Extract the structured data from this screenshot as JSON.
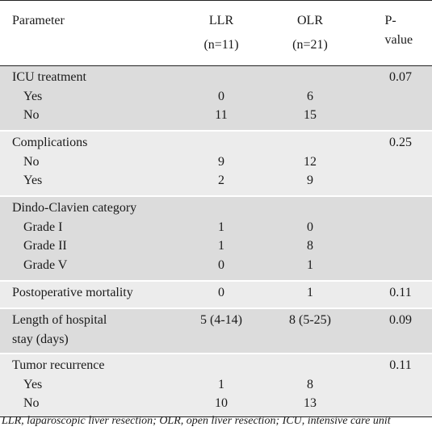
{
  "header": {
    "parameter": "Parameter",
    "llr": "LLR",
    "llr_n": "(n=11)",
    "olr": "OLR",
    "olr_n": "(n=21)",
    "pvalue": "P-value"
  },
  "groups": [
    {
      "title": "ICU treatment",
      "p": "0.07",
      "rows": [
        {
          "label": "Yes",
          "llr": "0",
          "olr": "6"
        },
        {
          "label": "No",
          "llr": "11",
          "olr": "15"
        }
      ]
    },
    {
      "title": "Complications",
      "p": "0.25",
      "rows": [
        {
          "label": "No",
          "llr": "9",
          "olr": "12"
        },
        {
          "label": "Yes",
          "llr": "2",
          "olr": "9"
        }
      ]
    },
    {
      "title": "Dindo-Clavien category",
      "p": "",
      "rows": [
        {
          "label": "Grade I",
          "llr": "1",
          "olr": "0"
        },
        {
          "label": "Grade II",
          "llr": "1",
          "olr": "8"
        },
        {
          "label": "Grade V",
          "llr": "0",
          "olr": "1"
        }
      ]
    },
    {
      "title": "Postoperative mortality",
      "llr": "0",
      "olr": "1",
      "p": "0.11"
    },
    {
      "title_line1": "Length of hospital",
      "title_line2": "stay (days)",
      "llr": "5 (4-14)",
      "olr": "8 (5-25)",
      "p": "0.09"
    },
    {
      "title": "Tumor recurrence",
      "p": "0.11",
      "rows": [
        {
          "label": "Yes",
          "llr": "1",
          "olr": "8"
        },
        {
          "label": "No",
          "llr": "10",
          "olr": "13"
        }
      ]
    }
  ],
  "footnote": "LLR, laparoscopic liver resection; OLR, open liver resection; ICU, intensive care unit"
}
